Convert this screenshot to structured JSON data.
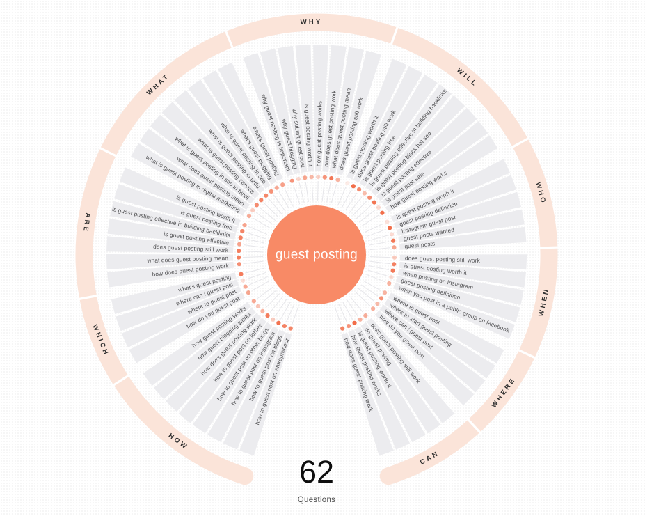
{
  "center": {
    "keyword": "guest posting"
  },
  "summary": {
    "count": "62",
    "label": "Questions"
  },
  "colors": {
    "center_circle": "#F88A66",
    "dot": "#F26A45",
    "wedge": "#ECECEF",
    "ring": "#FBE4D9",
    "ring_label": "#2F2F2F",
    "question_text": "#4E4E50",
    "spoke_line": "#E6E6EA",
    "separator": "#FFFFFF"
  },
  "chart_data": {
    "type": "radial-question-wheel",
    "title": "guest posting",
    "total_questions": 62,
    "legend_position": "outer-ring",
    "sections": [
      {
        "label": "HOW",
        "questions": [
          "how to guest post on entrepreneur",
          "how to guest post on blogs",
          "how to guest post on instagram",
          "how to guest post on other blogs",
          "how to guest post on forbes",
          "how does guest posting work",
          "how guest blogging works",
          "how guest posting works"
        ]
      },
      {
        "label": "WHICH",
        "questions": [
          "how do you guest post",
          "where to guest post",
          "where can i guest post",
          "what's guest posting"
        ]
      },
      {
        "label": "ARE",
        "questions": [
          "how does guest posting work",
          "what does guest posting mean",
          "does guest posting still work",
          "is guest posting effective",
          "is guest posting effective in building backlinks",
          "is guest posting free",
          "is guest posting worth it"
        ]
      },
      {
        "label": "WHAT",
        "questions": [
          "what is guest posting in digital marketing",
          "what does guest posting mean",
          "what is guest posting in seo in hindi",
          "what is guest posting service",
          "what is guest posting in urdu",
          "what is guest posting in seo",
          "what's guest blogging",
          "what's guest posting"
        ]
      },
      {
        "label": "WHY",
        "questions": [
          "why guest posting is important",
          "why guest blogging",
          "why submit guest post",
          "is guest posting worth it",
          "how guest posting works",
          "how does guest posting work",
          "what does guest posting mean",
          "does guest posting still work"
        ]
      },
      {
        "label": "WILL",
        "questions": [
          "is guest posting worth it",
          "does guest posting still work",
          "is guest posting free",
          "is guest posting effective in building backlinks",
          "is guest posting black hat seo",
          "is guest posting effective",
          "is guest post safe",
          "how guest posting works"
        ]
      },
      {
        "label": "WHO",
        "questions": [
          "is guest posting worth it",
          "guest posting definition",
          "instagram guest post",
          "guest posts wanted",
          "guest posts"
        ]
      },
      {
        "label": "WHEN",
        "questions": [
          "does guest posting still work",
          "is guest posting worth it",
          "when posting on instagram",
          "guest posting definition",
          "when you post in a public group on facebook"
        ]
      },
      {
        "label": "WHERE",
        "questions": [
          "where to guest post",
          "where to start guest posting",
          "where can i guest post",
          "how do you guest post"
        ]
      },
      {
        "label": "CAN",
        "questions": [
          "does guest posting still work",
          "do guest posting",
          "is guest posting worth it",
          "how guest posting works",
          "how does guest posting work"
        ]
      }
    ]
  }
}
